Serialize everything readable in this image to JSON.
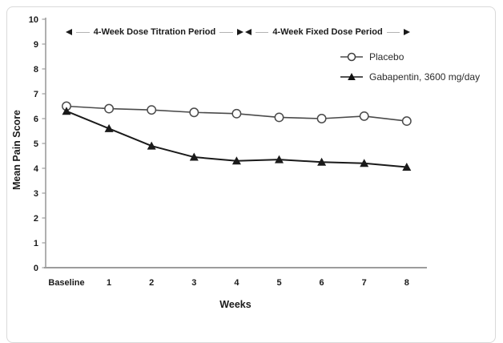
{
  "chart_data": {
    "type": "line",
    "title": "",
    "xlabel": "Weeks",
    "ylabel": "Mean Pain Score",
    "ylim": [
      0,
      10
    ],
    "y_ticks": [
      0,
      1,
      2,
      3,
      4,
      5,
      6,
      7,
      8,
      9,
      10
    ],
    "categories": [
      "Baseline",
      "1",
      "2",
      "3",
      "4",
      "5",
      "6",
      "7",
      "8"
    ],
    "series": [
      {
        "name": "Placebo",
        "marker": "circle-open",
        "color": "#4a4a4a",
        "line_width": 1.6,
        "values": [
          6.5,
          6.4,
          6.35,
          6.25,
          6.2,
          6.05,
          6.0,
          6.1,
          5.9
        ]
      },
      {
        "name": "Gabapentin, 3600 mg/day",
        "marker": "triangle-filled",
        "color": "#1a1a1a",
        "line_width": 2,
        "values": [
          6.3,
          5.6,
          4.9,
          4.45,
          4.3,
          4.35,
          4.25,
          4.2,
          4.05
        ]
      }
    ],
    "legend_position": "upper right",
    "grid": false,
    "annotations": [
      {
        "label": "4-Week Dose Titration Period",
        "span": [
          "Baseline",
          "4"
        ]
      },
      {
        "label": "4-Week Fixed Dose Period",
        "span": [
          "4",
          "8"
        ]
      }
    ]
  },
  "colors": {
    "axis": "#9c9c9c",
    "text": "#1a1a1a",
    "annotation_line": "#b3b3b3",
    "frame_border": "#d9d9d9"
  }
}
